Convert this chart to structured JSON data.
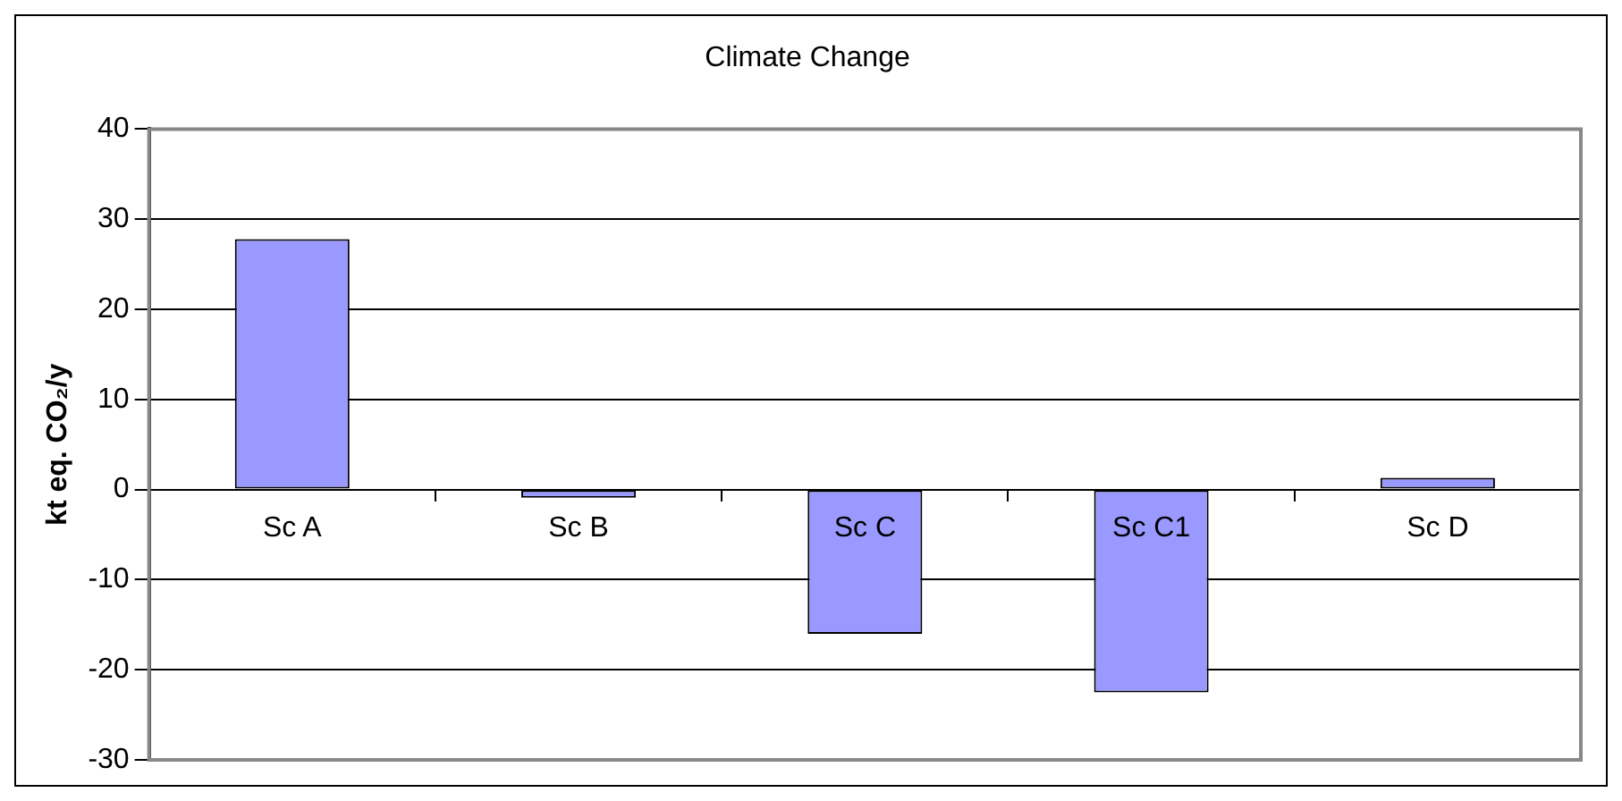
{
  "chart_data": {
    "type": "bar",
    "title": "Climate Change",
    "ylabel": "kt eq. CO₂/y",
    "categories": [
      "Sc A",
      "Sc B",
      "Sc C",
      "Sc C1",
      "Sc D"
    ],
    "values": [
      27.8,
      -0.9,
      -16,
      -22.5,
      1.3
    ],
    "color": "#9999ff",
    "ylim": [
      -30,
      40
    ],
    "yticks": [
      -30,
      -20,
      -10,
      0,
      10,
      20,
      30,
      40
    ],
    "grid": "y",
    "legend": false
  }
}
